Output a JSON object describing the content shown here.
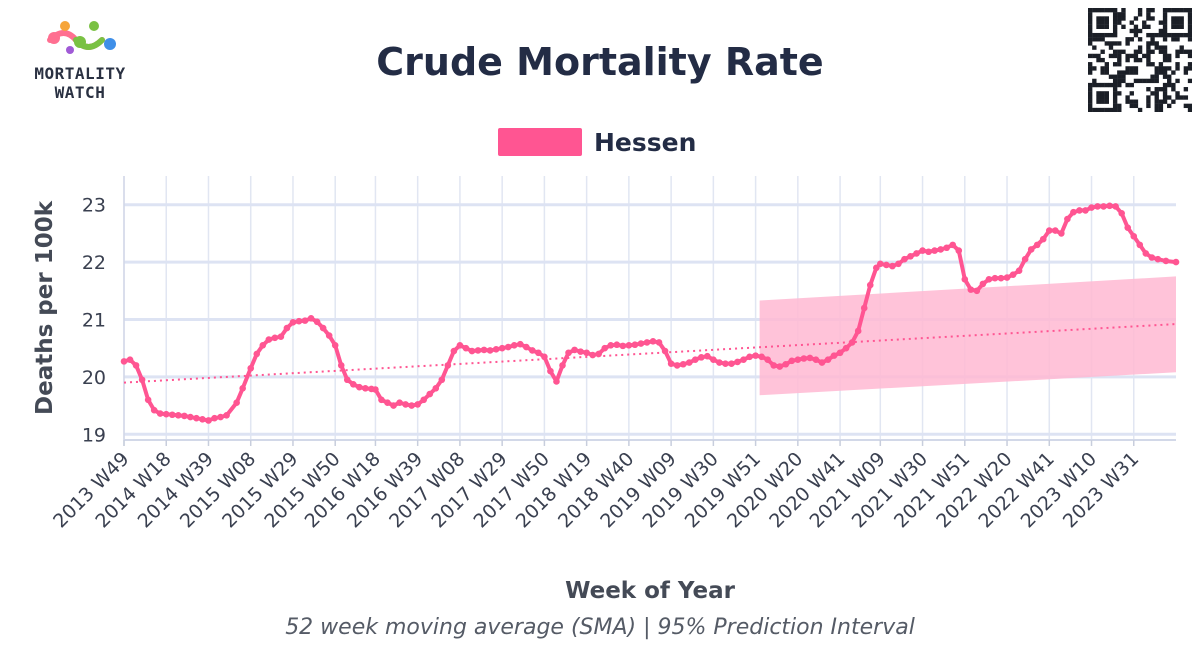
{
  "logo": {
    "line1": "MORTALITY",
    "line2": "WATCH",
    "colors": [
      "#ff6f91",
      "#f6a53a",
      "#7ac143",
      "#3f8fe8",
      "#a05ad6"
    ]
  },
  "qr_icon": "qr-code-icon",
  "chart_data": {
    "type": "line",
    "title": "Crude Mortality Rate",
    "subtitle": "52 week moving average (SMA) | 95% Prediction Interval",
    "xlabel": "Week of Year",
    "ylabel": "Deaths per 100k",
    "ylim": [
      18.9,
      23.5
    ],
    "yticks": [
      19,
      20,
      21,
      22,
      23
    ],
    "xlim": [
      "2013 W49",
      "2023 W52"
    ],
    "xticks": [
      "2013 W49",
      "2014 W18",
      "2014 W39",
      "2015 W08",
      "2015 W29",
      "2015 W50",
      "2016 W18",
      "2016 W39",
      "2017 W08",
      "2017 W29",
      "2017 W50",
      "2018 W19",
      "2018 W40",
      "2019 W09",
      "2019 W30",
      "2019 W51",
      "2020 W20",
      "2020 W41",
      "2021 W09",
      "2021 W30",
      "2021 W51",
      "2022 W20",
      "2022 W41",
      "2023 W10",
      "2023 W31"
    ],
    "grid": true,
    "legend_position": "top-center",
    "series": [
      {
        "name": "Hessen",
        "color": "#ff5592",
        "markers": true,
        "points": [
          [
            "2013 W49",
            20.27
          ],
          [
            "2013 W52",
            20.3
          ],
          [
            "2014 W03",
            20.2
          ],
          [
            "2014 W06",
            19.95
          ],
          [
            "2014 W09",
            19.6
          ],
          [
            "2014 W12",
            19.42
          ],
          [
            "2014 W15",
            19.36
          ],
          [
            "2014 W18",
            19.35
          ],
          [
            "2014 W21",
            19.34
          ],
          [
            "2014 W24",
            19.33
          ],
          [
            "2014 W27",
            19.32
          ],
          [
            "2014 W30",
            19.3
          ],
          [
            "2014 W33",
            19.28
          ],
          [
            "2014 W36",
            19.26
          ],
          [
            "2014 W39",
            19.24
          ],
          [
            "2014 W42",
            19.28
          ],
          [
            "2014 W45",
            19.3
          ],
          [
            "2014 W48",
            19.33
          ],
          [
            "2015 W01",
            19.55
          ],
          [
            "2015 W04",
            19.8
          ],
          [
            "2015 W08",
            20.15
          ],
          [
            "2015 W11",
            20.4
          ],
          [
            "2015 W14",
            20.55
          ],
          [
            "2015 W17",
            20.65
          ],
          [
            "2015 W20",
            20.68
          ],
          [
            "2015 W23",
            20.7
          ],
          [
            "2015 W26",
            20.85
          ],
          [
            "2015 W29",
            20.95
          ],
          [
            "2015 W32",
            20.97
          ],
          [
            "2015 W35",
            20.98
          ],
          [
            "2015 W38",
            21.02
          ],
          [
            "2015 W41",
            20.96
          ],
          [
            "2015 W44",
            20.85
          ],
          [
            "2015 W47",
            20.72
          ],
          [
            "2015 W50",
            20.55
          ],
          [
            "2016 W01",
            20.2
          ],
          [
            "2016 W04",
            19.95
          ],
          [
            "2016 W07",
            19.87
          ],
          [
            "2016 W10",
            19.82
          ],
          [
            "2016 W13",
            19.8
          ],
          [
            "2016 W16",
            19.79
          ],
          [
            "2016 W18",
            19.78
          ],
          [
            "2016 W21",
            19.6
          ],
          [
            "2016 W24",
            19.55
          ],
          [
            "2016 W27",
            19.5
          ],
          [
            "2016 W30",
            19.55
          ],
          [
            "2016 W33",
            19.52
          ],
          [
            "2016 W36",
            19.5
          ],
          [
            "2016 W39",
            19.52
          ],
          [
            "2016 W42",
            19.6
          ],
          [
            "2016 W45",
            19.7
          ],
          [
            "2016 W48",
            19.8
          ],
          [
            "2016 W51",
            19.95
          ],
          [
            "2017 W02",
            20.2
          ],
          [
            "2017 W05",
            20.45
          ],
          [
            "2017 W08",
            20.55
          ],
          [
            "2017 W11",
            20.5
          ],
          [
            "2017 W14",
            20.45
          ],
          [
            "2017 W17",
            20.46
          ],
          [
            "2017 W20",
            20.47
          ],
          [
            "2017 W23",
            20.46
          ],
          [
            "2017 W26",
            20.48
          ],
          [
            "2017 W29",
            20.5
          ],
          [
            "2017 W32",
            20.52
          ],
          [
            "2017 W35",
            20.55
          ],
          [
            "2017 W38",
            20.57
          ],
          [
            "2017 W41",
            20.52
          ],
          [
            "2017 W44",
            20.46
          ],
          [
            "2017 W47",
            20.42
          ],
          [
            "2017 W50",
            20.35
          ],
          [
            "2018 W01",
            20.1
          ],
          [
            "2018 W04",
            19.92
          ],
          [
            "2018 W07",
            20.2
          ],
          [
            "2018 W10",
            20.42
          ],
          [
            "2018 W13",
            20.47
          ],
          [
            "2018 W16",
            20.44
          ],
          [
            "2018 W19",
            20.42
          ],
          [
            "2018 W22",
            20.38
          ],
          [
            "2018 W25",
            20.4
          ],
          [
            "2018 W28",
            20.5
          ],
          [
            "2018 W31",
            20.55
          ],
          [
            "2018 W34",
            20.56
          ],
          [
            "2018 W37",
            20.54
          ],
          [
            "2018 W40",
            20.55
          ],
          [
            "2018 W43",
            20.56
          ],
          [
            "2018 W46",
            20.58
          ],
          [
            "2018 W49",
            20.6
          ],
          [
            "2018 W52",
            20.62
          ],
          [
            "2019 W03",
            20.6
          ],
          [
            "2019 W06",
            20.45
          ],
          [
            "2019 W09",
            20.23
          ],
          [
            "2019 W12",
            20.2
          ],
          [
            "2019 W15",
            20.22
          ],
          [
            "2019 W18",
            20.25
          ],
          [
            "2019 W21",
            20.3
          ],
          [
            "2019 W24",
            20.34
          ],
          [
            "2019 W27",
            20.36
          ],
          [
            "2019 W30",
            20.3
          ],
          [
            "2019 W33",
            20.25
          ],
          [
            "2019 W36",
            20.23
          ],
          [
            "2019 W39",
            20.23
          ],
          [
            "2019 W42",
            20.26
          ],
          [
            "2019 W45",
            20.3
          ],
          [
            "2019 W48",
            20.35
          ],
          [
            "2019 W51",
            20.37
          ],
          [
            "2020 W02",
            20.35
          ],
          [
            "2020 W05",
            20.3
          ],
          [
            "2020 W08",
            20.2
          ],
          [
            "2020 W11",
            20.18
          ],
          [
            "2020 W14",
            20.22
          ],
          [
            "2020 W17",
            20.28
          ],
          [
            "2020 W20",
            20.3
          ],
          [
            "2020 W23",
            20.32
          ],
          [
            "2020 W26",
            20.33
          ],
          [
            "2020 W29",
            20.3
          ],
          [
            "2020 W32",
            20.25
          ],
          [
            "2020 W35",
            20.3
          ],
          [
            "2020 W38",
            20.37
          ],
          [
            "2020 W41",
            20.42
          ],
          [
            "2020 W44",
            20.5
          ],
          [
            "2020 W47",
            20.6
          ],
          [
            "2020 W50",
            20.8
          ],
          [
            "2021 W01",
            21.2
          ],
          [
            "2021 W04",
            21.6
          ],
          [
            "2021 W07",
            21.9
          ],
          [
            "2021 W09",
            21.97
          ],
          [
            "2021 W12",
            21.95
          ],
          [
            "2021 W15",
            21.93
          ],
          [
            "2021 W18",
            21.97
          ],
          [
            "2021 W21",
            22.05
          ],
          [
            "2021 W24",
            22.1
          ],
          [
            "2021 W27",
            22.15
          ],
          [
            "2021 W30",
            22.2
          ],
          [
            "2021 W33",
            22.18
          ],
          [
            "2021 W36",
            22.2
          ],
          [
            "2021 W39",
            22.22
          ],
          [
            "2021 W42",
            22.25
          ],
          [
            "2021 W45",
            22.3
          ],
          [
            "2021 W48",
            22.2
          ],
          [
            "2021 W51",
            21.7
          ],
          [
            "2022 W02",
            21.52
          ],
          [
            "2022 W05",
            21.5
          ],
          [
            "2022 W08",
            21.62
          ],
          [
            "2022 W11",
            21.7
          ],
          [
            "2022 W14",
            21.72
          ],
          [
            "2022 W17",
            21.72
          ],
          [
            "2022 W20",
            21.73
          ],
          [
            "2022 W23",
            21.78
          ],
          [
            "2022 W26",
            21.85
          ],
          [
            "2022 W29",
            22.05
          ],
          [
            "2022 W32",
            22.22
          ],
          [
            "2022 W35",
            22.3
          ],
          [
            "2022 W38",
            22.4
          ],
          [
            "2022 W41",
            22.55
          ],
          [
            "2022 W44",
            22.55
          ],
          [
            "2022 W47",
            22.5
          ],
          [
            "2022 W50",
            22.75
          ],
          [
            "2023 W01",
            22.87
          ],
          [
            "2023 W04",
            22.9
          ],
          [
            "2023 W07",
            22.9
          ],
          [
            "2023 W10",
            22.95
          ],
          [
            "2023 W13",
            22.97
          ],
          [
            "2023 W16",
            22.97
          ],
          [
            "2023 W19",
            22.98
          ],
          [
            "2023 W22",
            22.97
          ],
          [
            "2023 W25",
            22.85
          ],
          [
            "2023 W28",
            22.6
          ],
          [
            "2023 W31",
            22.45
          ],
          [
            "2023 W34",
            22.3
          ],
          [
            "2023 W37",
            22.15
          ],
          [
            "2023 W40",
            22.08
          ],
          [
            "2023 W43",
            22.05
          ],
          [
            "2023 W47",
            22.02
          ],
          [
            "2023 W52",
            22.0
          ]
        ]
      },
      {
        "role": "baseline-trend",
        "color": "#ff5592",
        "style": "dotted",
        "points": [
          [
            "2013 W49",
            19.9
          ],
          [
            "2023 W52",
            20.92
          ]
        ]
      }
    ],
    "prediction_interval": {
      "color": "#ffb8d2",
      "from": "2020 W01",
      "to": "2023 W52",
      "lower": [
        19.68,
        20.08
      ],
      "upper": [
        21.33,
        21.75
      ]
    }
  }
}
